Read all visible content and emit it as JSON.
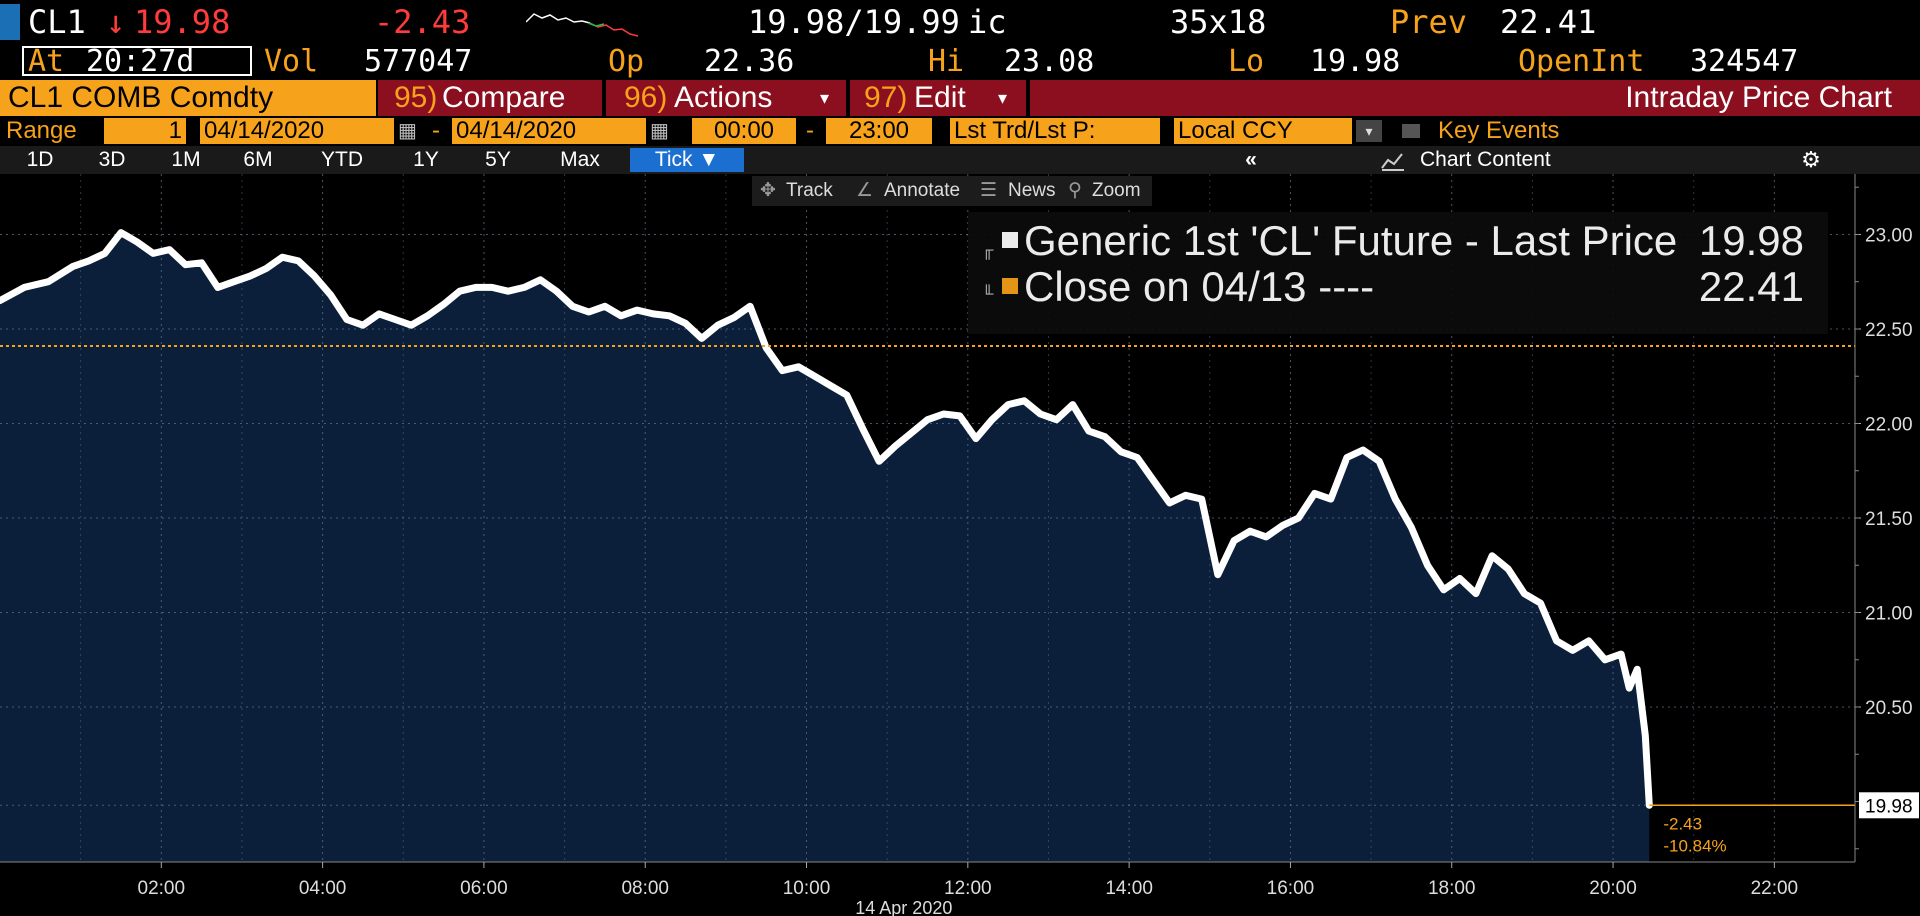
{
  "header": {
    "ticker": "CL1",
    "arrow": "↓",
    "last": "19.98",
    "change": "-2.43",
    "bid_ask": "19.98/19.99",
    "bid_ask_suffix": "ic",
    "size": "35x18",
    "prev_label": "Prev",
    "prev": "22.41"
  },
  "quote": {
    "at_label": "At",
    "time": "20:27d",
    "vol_label": "Vol",
    "vol": "577047",
    "op_label": "Op",
    "op": "22.36",
    "hi_label": "Hi",
    "hi": "23.08",
    "lo_label": "Lo",
    "lo": "19.98",
    "oi_label": "OpenInt",
    "oi": "324547"
  },
  "menu": {
    "security": "CL1 COMB Comdty",
    "compare_num": "95)",
    "compare": "Compare",
    "actions_num": "96)",
    "actions": "Actions",
    "edit_num": "97)",
    "edit": "Edit",
    "title": "Intraday Price Chart"
  },
  "range": {
    "label": "Range",
    "period": "1",
    "start": "04/14/2020",
    "end": "04/14/2020",
    "t_start": "00:00",
    "t_end": "23:00",
    "field": "Lst Trd/Lst P:",
    "ccy": "Local CCY",
    "events": "Key Events"
  },
  "tabs": [
    "1D",
    "3D",
    "1M",
    "6M",
    "YTD",
    "1Y",
    "5Y",
    "Max"
  ],
  "tick_tab": "Tick ▼",
  "collapse": "«",
  "chart_content": "Chart Content",
  "tools": {
    "track": "Track",
    "annotate": "Annotate",
    "news": "News",
    "zoom": "Zoom"
  },
  "colors": {
    "accent": "#f7a21b",
    "area": "#0b1f3a",
    "line": "#ffffff",
    "red": "#ff3b3b",
    "bar": "#8b0f1f"
  },
  "chart_data": {
    "type": "area",
    "title": "Intraday Price Chart",
    "date_label": "14 Apr 2020",
    "x_ticks": [
      "02:00",
      "04:00",
      "06:00",
      "08:00",
      "10:00",
      "12:00",
      "14:00",
      "16:00",
      "18:00",
      "20:00",
      "22:00"
    ],
    "y_ticks": [
      "23.00",
      "22.50",
      "22.00",
      "21.50",
      "21.00",
      "20.50"
    ],
    "ylim": [
      19.68,
      23.32
    ],
    "xlim_hours": [
      0.0,
      23.0
    ],
    "reference_line": {
      "name": "Close on 04/13 ----",
      "value": 22.41
    },
    "last_value_label": "19.98",
    "change_labels": [
      "-2.43",
      "-10.84%"
    ],
    "series": [
      {
        "name": "Generic 1st 'CL' Future - Last Price",
        "last": "19.98",
        "x": [
          0.0,
          0.3,
          0.6,
          0.9,
          1.1,
          1.3,
          1.5,
          1.7,
          1.9,
          2.1,
          2.3,
          2.5,
          2.7,
          2.9,
          3.1,
          3.3,
          3.5,
          3.7,
          3.9,
          4.1,
          4.3,
          4.5,
          4.7,
          4.9,
          5.1,
          5.3,
          5.5,
          5.7,
          5.9,
          6.1,
          6.3,
          6.5,
          6.7,
          6.9,
          7.1,
          7.3,
          7.5,
          7.7,
          7.9,
          8.1,
          8.3,
          8.5,
          8.7,
          8.9,
          9.1,
          9.3,
          9.5,
          9.7,
          9.9,
          10.1,
          10.3,
          10.5,
          10.7,
          10.9,
          11.1,
          11.3,
          11.5,
          11.7,
          11.9,
          12.1,
          12.3,
          12.5,
          12.7,
          12.9,
          13.1,
          13.3,
          13.5,
          13.7,
          13.9,
          14.1,
          14.3,
          14.5,
          14.7,
          14.9,
          15.1,
          15.3,
          15.5,
          15.7,
          15.9,
          16.1,
          16.3,
          16.5,
          16.7,
          16.9,
          17.1,
          17.3,
          17.5,
          17.7,
          17.9,
          18.1,
          18.3,
          18.5,
          18.7,
          18.9,
          19.1,
          19.3,
          19.5,
          19.7,
          19.9,
          20.1,
          20.2,
          20.3,
          20.4,
          20.45
        ],
        "y": [
          22.65,
          22.72,
          22.75,
          22.83,
          22.86,
          22.9,
          23.01,
          22.96,
          22.9,
          22.92,
          22.84,
          22.85,
          22.72,
          22.75,
          22.78,
          22.82,
          22.88,
          22.86,
          22.78,
          22.68,
          22.55,
          22.52,
          22.58,
          22.55,
          22.52,
          22.57,
          22.63,
          22.7,
          22.72,
          22.72,
          22.7,
          22.72,
          22.76,
          22.7,
          22.62,
          22.59,
          22.62,
          22.57,
          22.6,
          22.58,
          22.57,
          22.53,
          22.45,
          22.52,
          22.56,
          22.62,
          22.4,
          22.28,
          22.3,
          22.25,
          22.2,
          22.15,
          21.97,
          21.8,
          21.88,
          21.95,
          22.02,
          22.05,
          22.04,
          21.92,
          22.02,
          22.1,
          22.12,
          22.05,
          22.02,
          22.1,
          21.96,
          21.93,
          21.85,
          21.82,
          21.7,
          21.58,
          21.62,
          21.6,
          21.2,
          21.38,
          21.43,
          21.4,
          21.46,
          21.5,
          21.63,
          21.6,
          21.82,
          21.86,
          21.8,
          21.6,
          21.45,
          21.25,
          21.12,
          21.18,
          21.1,
          21.3,
          21.23,
          21.1,
          21.05,
          20.85,
          20.8,
          20.85,
          20.75,
          20.78,
          20.6,
          20.7,
          20.35,
          19.98
        ]
      }
    ]
  }
}
